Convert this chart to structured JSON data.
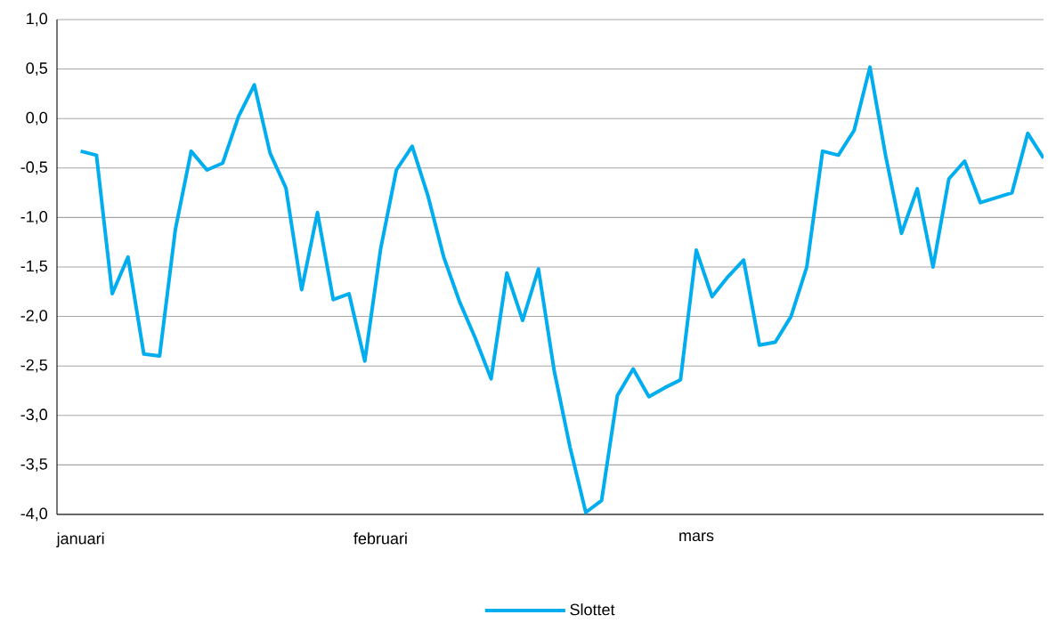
{
  "chart_data": {
    "type": "line",
    "categories": [
      "januari",
      null,
      null,
      null,
      null,
      null,
      null,
      null,
      null,
      null,
      null,
      null,
      null,
      null,
      null,
      null,
      null,
      null,
      null,
      "februari",
      null,
      null,
      null,
      null,
      null,
      null,
      null,
      null,
      null,
      null,
      null,
      null,
      null,
      null,
      null,
      null,
      null,
      null,
      null,
      "mars",
      null,
      null,
      null,
      null,
      null,
      null,
      null,
      null,
      null,
      null,
      null,
      null,
      null,
      null,
      null,
      null,
      null,
      null,
      null,
      null,
      null,
      null
    ],
    "series": [
      {
        "name": "Slottet",
        "color": "#00aeef",
        "values": [
          -0.33,
          -0.37,
          -1.77,
          -1.4,
          -2.38,
          -2.4,
          -1.12,
          -0.33,
          -0.52,
          -0.45,
          0.02,
          0.34,
          -0.35,
          -0.7,
          -1.73,
          -0.95,
          -1.83,
          -1.77,
          -2.45,
          -1.32,
          -0.52,
          -0.28,
          -0.78,
          -1.4,
          -1.85,
          -2.22,
          -2.63,
          -1.56,
          -2.04,
          -1.52,
          -2.55,
          -3.32,
          -3.98,
          -3.86,
          -2.8,
          -2.53,
          -2.81,
          -2.72,
          -2.64,
          -1.33,
          -1.8,
          -1.6,
          -1.43,
          -2.29,
          -2.26,
          -2.0,
          -1.5,
          -0.33,
          -0.37,
          -0.12,
          0.52,
          -0.38,
          -1.16,
          -0.71,
          -1.5,
          -0.61,
          -0.43,
          -0.85,
          -0.8,
          -0.75,
          -0.15,
          -0.4
        ]
      }
    ],
    "ylim": [
      -4.0,
      1.0
    ],
    "yticks": [
      {
        "value": -4.0,
        "label": "-4,0"
      },
      {
        "value": -3.5,
        "label": "-3,5"
      },
      {
        "value": -3.0,
        "label": "-3,0"
      },
      {
        "value": -2.5,
        "label": "-2,5"
      },
      {
        "value": -2.0,
        "label": "-2,0"
      },
      {
        "value": -1.5,
        "label": "-1,5"
      },
      {
        "value": -1.0,
        "label": "-1,0"
      },
      {
        "value": -0.5,
        "label": "-0,5"
      },
      {
        "value": 0.0,
        "label": "0,0"
      },
      {
        "value": 0.5,
        "label": "0,5"
      },
      {
        "value": 1.0,
        "label": "1,0"
      }
    ],
    "grid": "y",
    "legend": "bottom",
    "marker": "none",
    "line_style": "solid"
  }
}
